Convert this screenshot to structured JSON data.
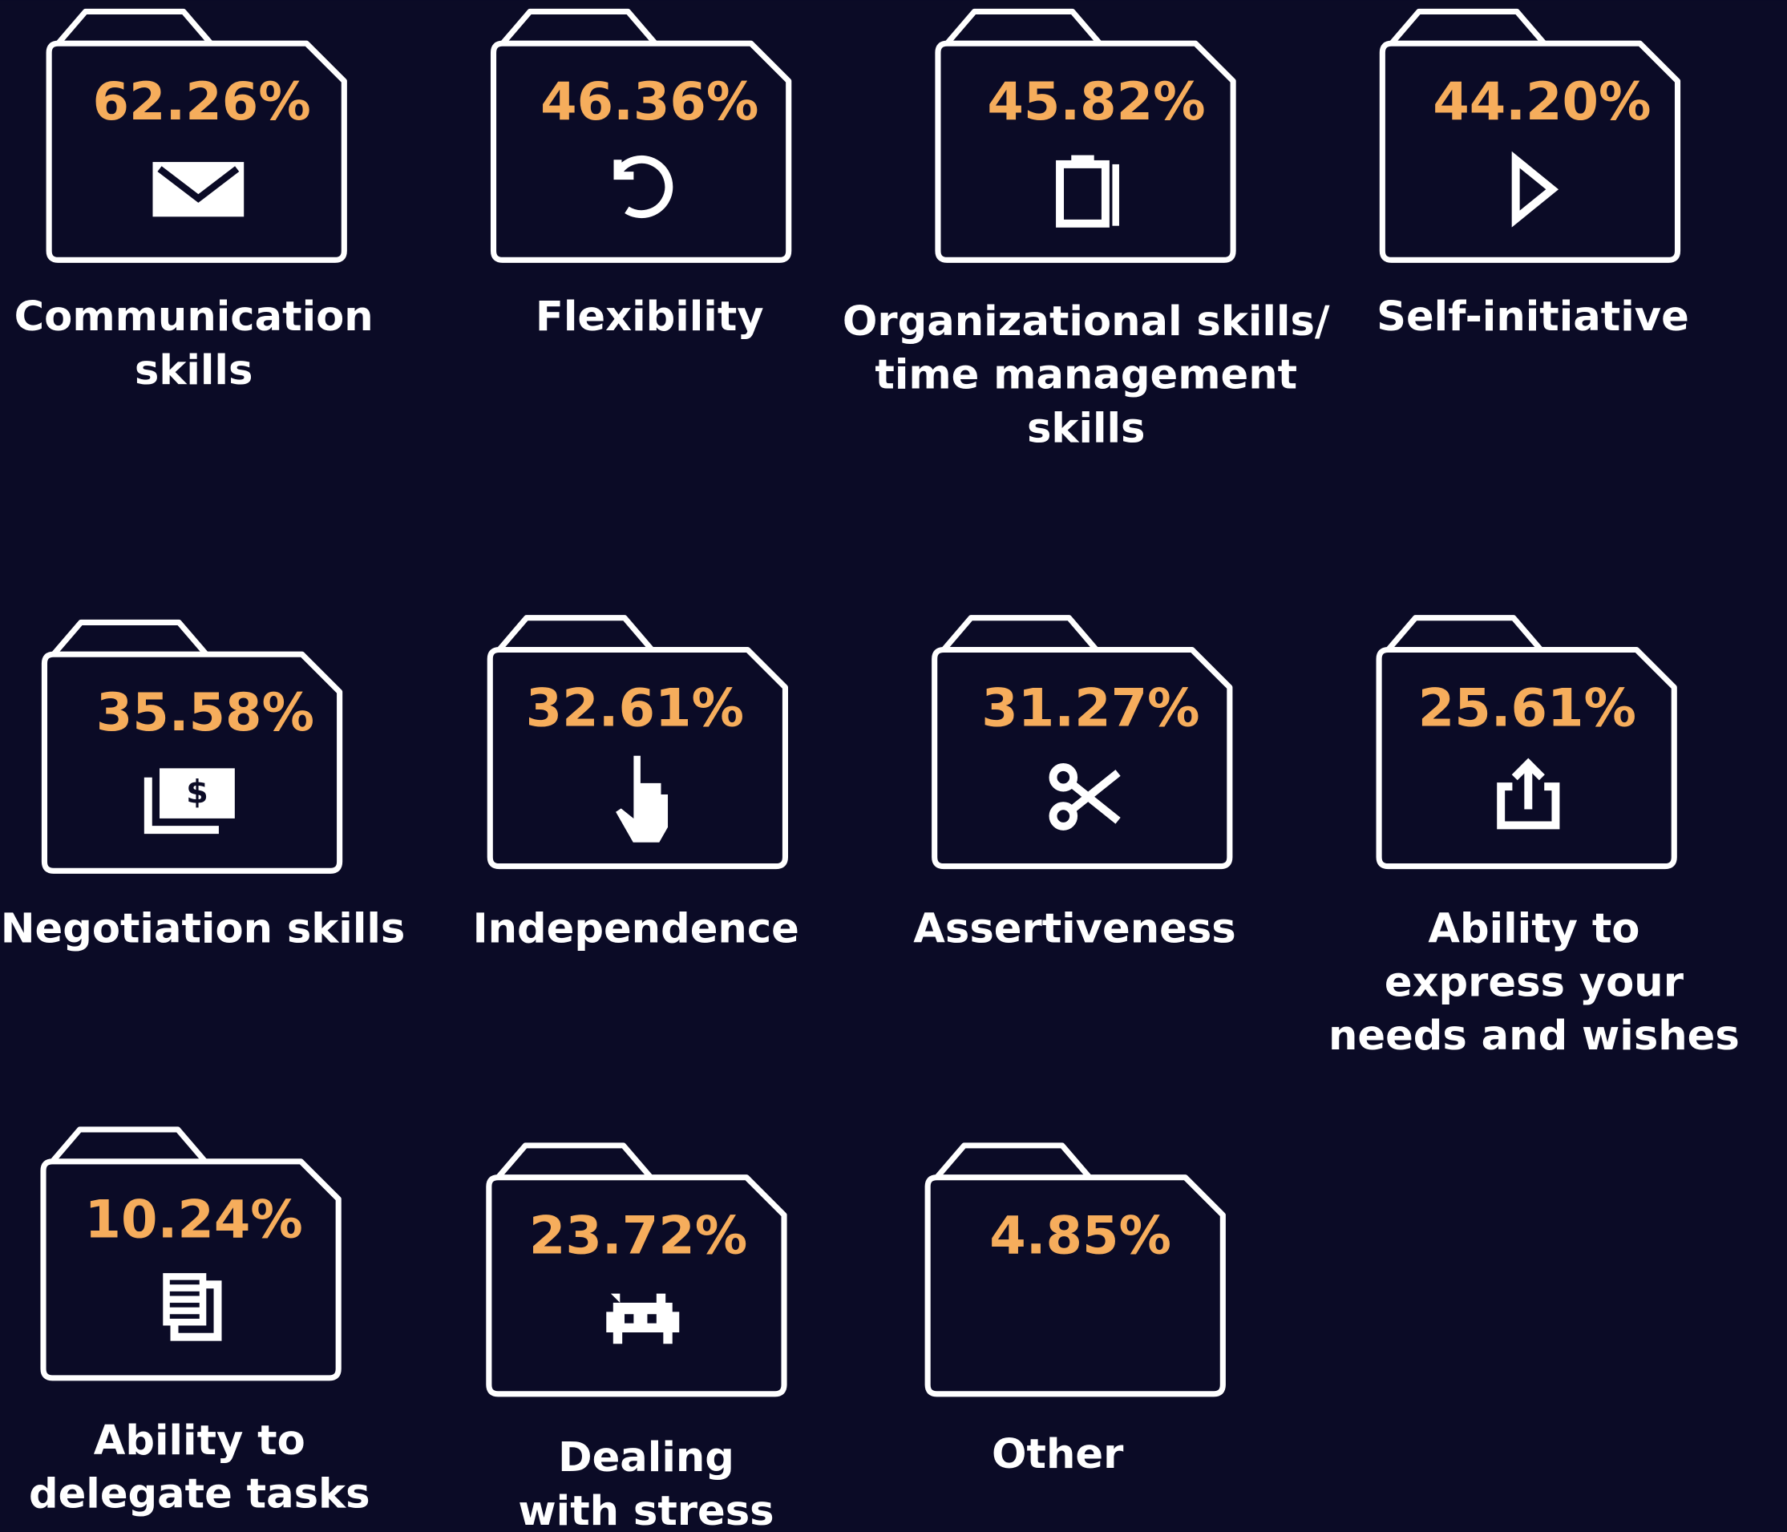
{
  "items": [
    {
      "value": "62.26%",
      "label": [
        "Communication",
        "skills"
      ]
    },
    {
      "value": "46.36%",
      "label": [
        "Flexibility"
      ]
    },
    {
      "value": "45.82%",
      "label": [
        "Organizational skills/",
        "time management",
        "skills"
      ]
    },
    {
      "value": "44.20%",
      "label": [
        "Self-initiative"
      ]
    },
    {
      "value": "35.58%",
      "label": [
        "Negotiation skills"
      ]
    },
    {
      "value": "32.61%",
      "label": [
        "Independence"
      ]
    },
    {
      "value": "31.27%",
      "label": [
        "Assertiveness"
      ]
    },
    {
      "value": "25.61%",
      "label": [
        "Ability to",
        "express your",
        "needs and wishes"
      ]
    },
    {
      "value": "10.24%",
      "label": [
        "Ability to",
        "delegate tasks"
      ]
    },
    {
      "value": "23.72%",
      "label": [
        "Dealing",
        "with stress"
      ]
    },
    {
      "value": "4.85%",
      "label": [
        "Other"
      ]
    }
  ]
}
